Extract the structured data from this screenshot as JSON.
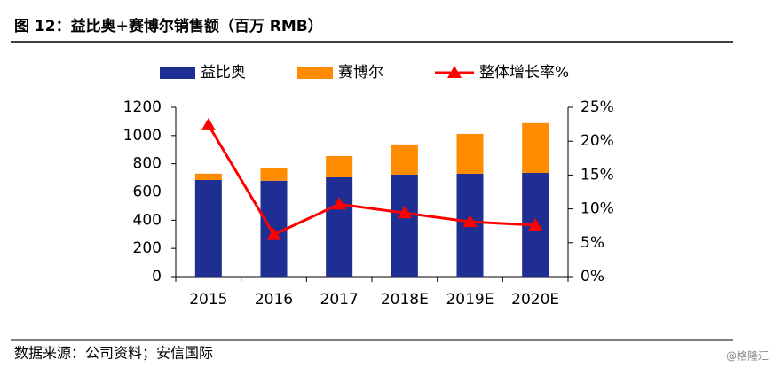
{
  "chart_data": {
    "type": "bar-line",
    "title": "图 12：益比奥+赛博尔销售额（百万 RMB）",
    "categories": [
      "2015",
      "2016",
      "2017",
      "2018E",
      "2019E",
      "2020E"
    ],
    "series": [
      {
        "name": "益比奥",
        "color": "#1f2e93",
        "type": "bar",
        "values": [
          685,
          680,
          704,
          723,
          729,
          735
        ]
      },
      {
        "name": "赛博尔",
        "color": "#ff8c00",
        "type": "bar",
        "values": [
          45,
          93,
          151,
          214,
          283,
          353
        ]
      },
      {
        "name": "整体增长率%",
        "color": "#ff0000",
        "type": "line",
        "axis": "y2",
        "values": [
          22.4,
          6.2,
          10.7,
          9.4,
          8.1,
          7.6
        ]
      }
    ],
    "ylim": [
      0,
      1200
    ],
    "yticks": [
      0,
      200,
      400,
      600,
      800,
      1000,
      1200
    ],
    "y2lim": [
      0,
      25
    ],
    "y2ticks": [
      {
        "value": 0,
        "label": "0%"
      },
      {
        "value": 5,
        "label": "5%"
      },
      {
        "value": 10,
        "label": "10%"
      },
      {
        "value": 15,
        "label": "15%"
      },
      {
        "value": 20,
        "label": "20%"
      },
      {
        "value": 25,
        "label": "25%"
      }
    ]
  },
  "source": "数据来源：公司资料；安信国际",
  "watermark": "@格隆汇"
}
